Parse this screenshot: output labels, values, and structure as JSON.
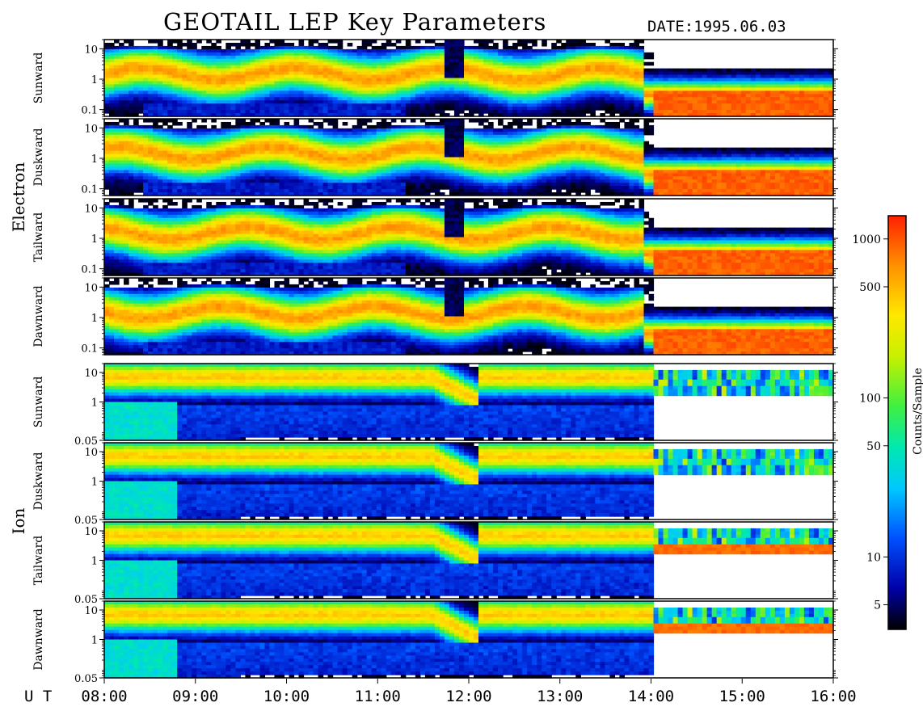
{
  "header": {
    "title": "GEOTAIL LEP Key Parameters",
    "date_label": "DATE:",
    "date_value": "1995.06.03"
  },
  "x_axis": {
    "unit_label": "U T",
    "ticks": [
      "08:00",
      "09:00",
      "10:00",
      "11:00",
      "12:00",
      "13:00",
      "14:00",
      "15:00",
      "16:00"
    ]
  },
  "colorbar": {
    "label": "Counts/Sample",
    "scale": "log",
    "range": [
      3.5,
      1400
    ],
    "ticks": [
      5,
      10,
      50,
      100,
      500,
      1000
    ],
    "tick_labels": [
      "5",
      "10",
      "50",
      "100",
      "500",
      "1000"
    ]
  },
  "groups": [
    {
      "name": "Electron",
      "panels": [
        "Sunward",
        "Duskward",
        "Tailward",
        "Dawnward"
      ]
    },
    {
      "name": "Ion",
      "panels": [
        "Sunward",
        "Duskward",
        "Tailward",
        "Dawnward"
      ]
    }
  ],
  "chart_data": {
    "type": "heatmap",
    "title": "GEOTAIL LEP Key Parameters",
    "date": "1995.06.03",
    "xlabel": "U T",
    "x_range_hours": [
      8,
      16
    ],
    "x_ticks": [
      "08:00",
      "09:00",
      "10:00",
      "11:00",
      "12:00",
      "13:00",
      "14:00",
      "15:00",
      "16:00"
    ],
    "y_scale": "log",
    "colorbar_label": "Counts/Sample",
    "colorbar_ticks": [
      5,
      10,
      50,
      100,
      500,
      1000
    ],
    "panels": [
      {
        "group": "Electron",
        "name": "Sunward",
        "yticks": [
          0.1,
          1,
          10
        ],
        "ytick_labels": [
          "0.1",
          "1",
          "10"
        ]
      },
      {
        "group": "Electron",
        "name": "Duskward",
        "yticks": [
          0.1,
          1,
          10
        ],
        "ytick_labels": [
          "0.1",
          "1",
          "10"
        ]
      },
      {
        "group": "Electron",
        "name": "Tailward",
        "yticks": [
          0.1,
          1,
          10
        ],
        "ytick_labels": [
          "0.1",
          "1",
          "10"
        ]
      },
      {
        "group": "Electron",
        "name": "Dawnward",
        "yticks": [
          0.1,
          1,
          10
        ],
        "ytick_labels": [
          "0.1",
          "1",
          "10"
        ]
      },
      {
        "group": "Ion",
        "name": "Sunward",
        "yticks": [
          0.05,
          1,
          10
        ],
        "ytick_labels": [
          "0.05",
          "1",
          "10"
        ]
      },
      {
        "group": "Ion",
        "name": "Duskward",
        "yticks": [
          0.05,
          1,
          10
        ],
        "ytick_labels": [
          "0.05",
          "1",
          "10"
        ]
      },
      {
        "group": "Ion",
        "name": "Tailward",
        "yticks": [
          0.05,
          1,
          10
        ],
        "ytick_labels": [
          "0.05",
          "1",
          "10"
        ]
      },
      {
        "group": "Ion",
        "name": "Dawnward",
        "yticks": [
          0.05,
          1,
          10
        ],
        "ytick_labels": [
          "0.05",
          "1",
          "10"
        ]
      }
    ]
  }
}
